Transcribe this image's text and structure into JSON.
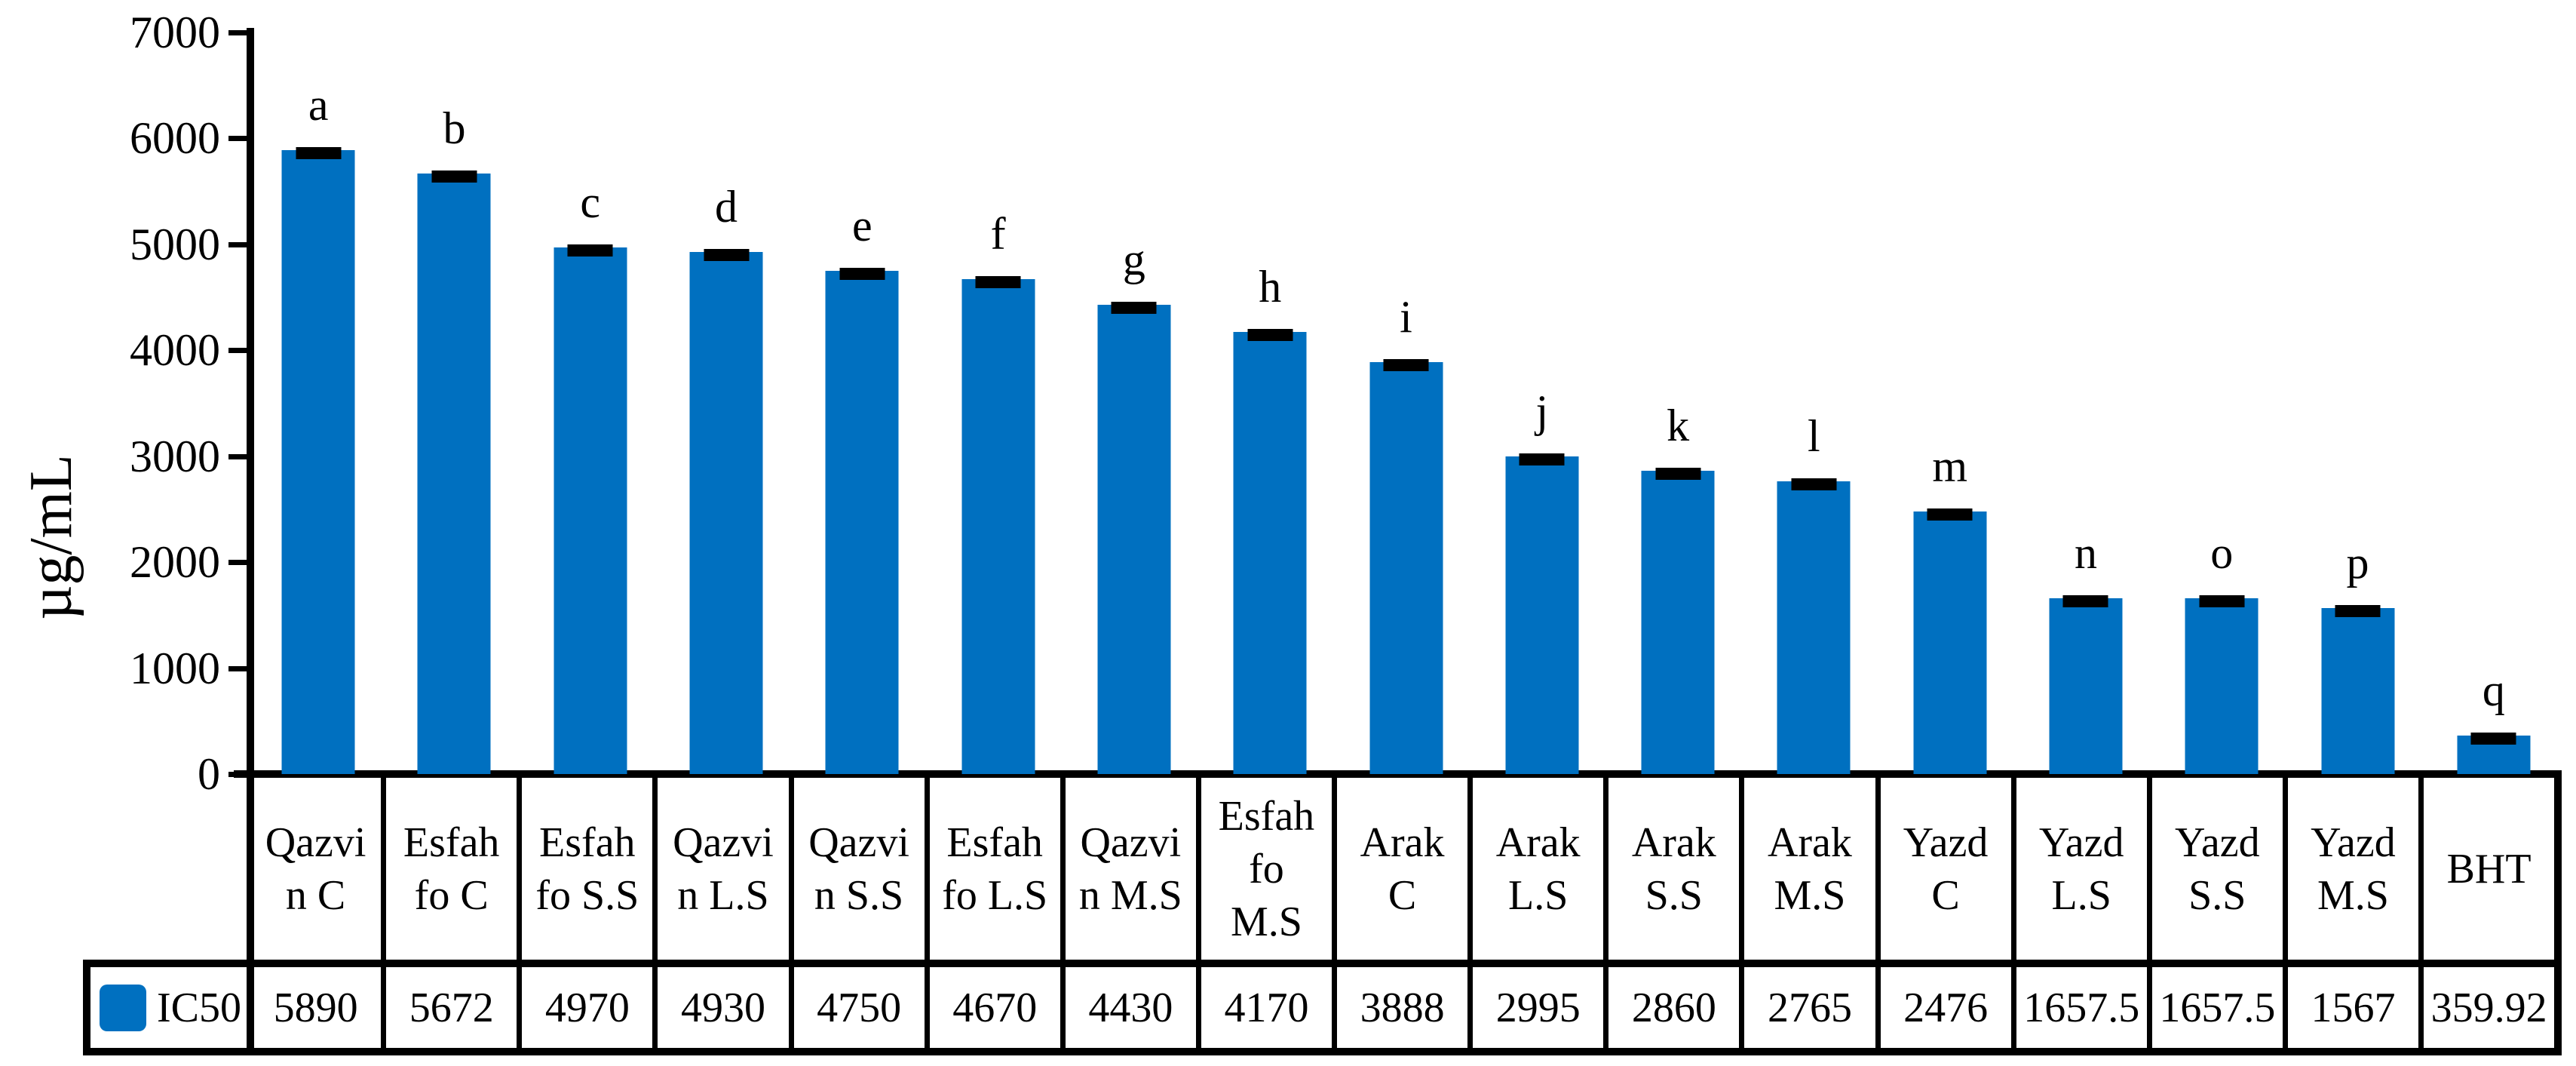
{
  "chart_data": {
    "type": "bar",
    "title": "",
    "xlabel": "",
    "ylabel": "µg/mL",
    "ylim": [
      0,
      7000
    ],
    "y_ticks": [
      0,
      1000,
      2000,
      3000,
      4000,
      5000,
      6000,
      7000
    ],
    "grid": false,
    "legend_label": "IC50",
    "legend_position": "bottom-left of data table",
    "bar_color": "#0070C0",
    "error_bar_color": "#000000",
    "categories": [
      "Qazvin C",
      "Esfah fo C",
      "Esfah fo S.S",
      "Qazvin L.S",
      "Qazvin S.S",
      "Esfah fo L.S",
      "Qazvin M.S",
      "Esfah fo M.S",
      "Arak C",
      "Arak L.S",
      "Arak S.S",
      "Arak M.S",
      "Yazd C",
      "Yazd L.S",
      "Yazd S.S",
      "Yazd M.S",
      "BHT"
    ],
    "category_display": [
      "Qazvi\nn C",
      "Esfah\nfo C",
      "Esfah\nfo S.S",
      "Qazvi\nn L.S",
      "Qazvi\nn S.S",
      "Esfah\nfo L.S",
      "Qazvi\nn M.S",
      "Esfah\nfo\nM.S",
      "Arak\nC",
      "Arak\nL.S",
      "Arak\nS.S",
      "Arak\nM.S",
      "Yazd\nC",
      "Yazd\nL.S",
      "Yazd\nS.S",
      "Yazd\nM.S",
      "BHT"
    ],
    "series": [
      {
        "name": "IC50",
        "values": [
          5890,
          5672,
          4970,
          4930,
          4750,
          4670,
          4430,
          4170,
          3888,
          2995,
          2860,
          2765,
          2476,
          1657.5,
          1657.5,
          1567,
          359.92
        ]
      }
    ],
    "value_labels": [
      "5890",
      "5672",
      "4970",
      "4930",
      "4750",
      "4670",
      "4430",
      "4170",
      "3888",
      "2995",
      "2860",
      "2765",
      "2476",
      "1657.5",
      "1657.5",
      "1567",
      "359.92"
    ],
    "significance_letters": [
      "a",
      "b",
      "c",
      "d",
      "e",
      "f",
      "g",
      "h",
      "i",
      "j",
      "k",
      "l",
      "m",
      "n",
      "o",
      "p",
      "q"
    ],
    "error_bars": "small caps drawn at top of each bar"
  }
}
